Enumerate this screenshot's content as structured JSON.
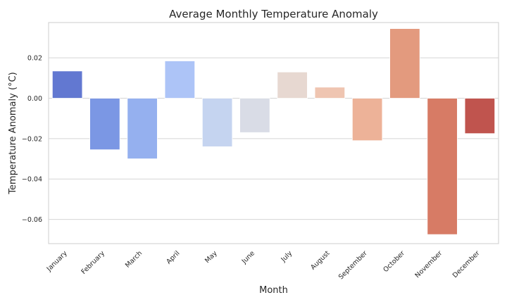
{
  "chart_data": {
    "type": "bar",
    "title": "Average Monthly Temperature Anomaly",
    "xlabel": "Month",
    "ylabel": "Temperature Anomaly (°C)",
    "categories": [
      "January",
      "February",
      "March",
      "April",
      "May",
      "June",
      "July",
      "August",
      "September",
      "October",
      "November",
      "December"
    ],
    "values": [
      0.0135,
      -0.0255,
      -0.03,
      0.0185,
      -0.024,
      -0.017,
      0.013,
      0.0055,
      -0.021,
      0.0345,
      -0.0675,
      -0.0175
    ],
    "colors": [
      "#6278d1",
      "#7b97e4",
      "#95b0ef",
      "#adc4f7",
      "#c5d4f0",
      "#d9dce6",
      "#e7d8d1",
      "#efc5b1",
      "#edb298",
      "#e39a7e",
      "#d77b65",
      "#c0544e"
    ],
    "ylim": [
      -0.072,
      0.0375
    ],
    "yticks": [
      0.02,
      0.0,
      -0.02,
      -0.04,
      -0.06
    ],
    "ytick_labels": [
      "0.02",
      "0.00",
      "−0.02",
      "−0.04",
      "−0.06"
    ],
    "grid": "horizontal",
    "style": "whitegrid"
  }
}
